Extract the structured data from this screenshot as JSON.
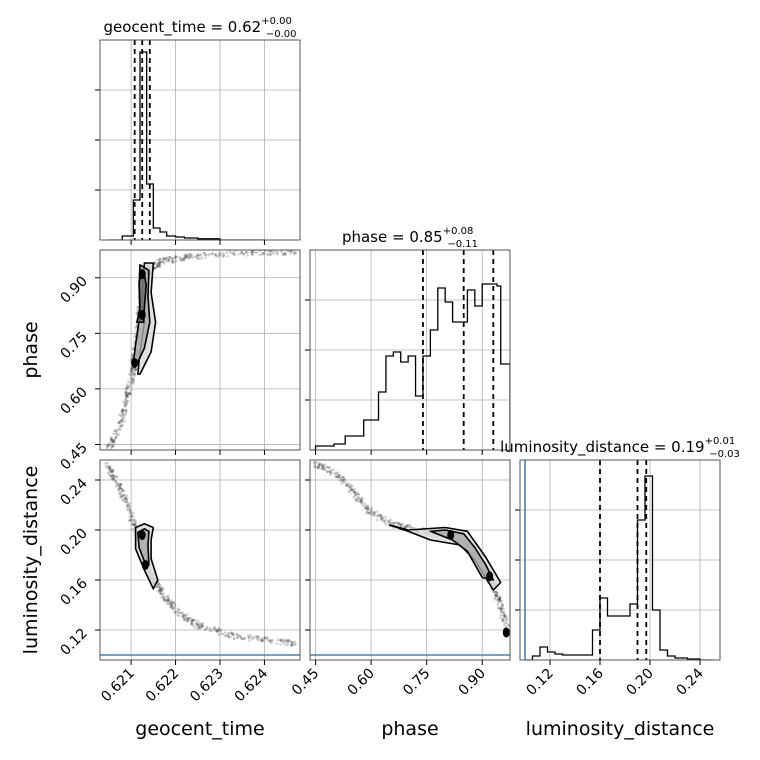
{
  "chart_data": {
    "type": "corner",
    "parameters": [
      "geocent_time",
      "phase",
      "luminosity_distance"
    ],
    "truth": {
      "luminosity_distance": 0.1,
      "color": "#4682b4"
    },
    "titles": [
      {
        "param": "geocent_time",
        "label": "geocent_time = 0.62",
        "plus": "+0.00",
        "minus": "−0.00"
      },
      {
        "param": "phase",
        "label": "phase = 0.85",
        "plus": "+0.08",
        "minus": "−0.11"
      },
      {
        "param": "luminosity_distance",
        "label": "luminosity_distance = 0.19",
        "plus": "+0.01",
        "minus": "−0.03"
      }
    ],
    "axes": {
      "geocent_time": {
        "range": [
          0.6203,
          0.6248
        ],
        "ticks": [
          "0.621",
          "0.622",
          "0.623",
          "0.624"
        ],
        "tick_values": [
          0.621,
          0.622,
          0.623,
          0.624
        ]
      },
      "phase": {
        "range": [
          0.435,
          0.975
        ],
        "ticks": [
          "0.45",
          "0.60",
          "0.75",
          "0.90"
        ],
        "tick_values": [
          0.45,
          0.6,
          0.75,
          0.9
        ]
      },
      "luminosity_distance": {
        "range": [
          0.096,
          0.256
        ],
        "ticks": [
          "0.12",
          "0.16",
          "0.20",
          "0.24"
        ],
        "tick_values": [
          0.12,
          0.16,
          0.2,
          0.24
        ]
      }
    },
    "histograms": [
      {
        "param": "geocent_time",
        "edges": [
          0.6205,
          0.6208,
          0.62105,
          0.6212,
          0.62135,
          0.6215,
          0.62165,
          0.6218,
          0.622,
          0.6222,
          0.6225,
          0.623,
          0.624
        ],
        "counts": [
          0.0,
          0.02,
          0.2,
          0.94,
          0.28,
          0.06,
          0.04,
          0.02,
          0.015,
          0.01,
          0.006,
          0.0
        ],
        "quantiles": [
          0.62108,
          0.62125,
          0.62142
        ]
      },
      {
        "param": "phase",
        "edges": [
          0.435,
          0.45,
          0.5,
          0.53,
          0.58,
          0.62,
          0.64,
          0.66,
          0.68,
          0.7,
          0.72,
          0.74,
          0.76,
          0.78,
          0.8,
          0.82,
          0.84,
          0.86,
          0.88,
          0.9,
          0.92,
          0.94,
          0.95,
          0.975
        ],
        "counts": [
          0.0,
          0.02,
          0.03,
          0.07,
          0.15,
          0.29,
          0.47,
          0.49,
          0.44,
          0.47,
          0.27,
          0.47,
          0.6,
          0.81,
          0.74,
          0.64,
          0.64,
          0.8,
          0.72,
          0.83,
          0.83,
          0.82,
          0.43
        ],
        "quantiles": [
          0.74,
          0.85,
          0.93
        ]
      },
      {
        "param": "luminosity_distance",
        "edges": [
          0.1,
          0.106,
          0.112,
          0.118,
          0.124,
          0.13,
          0.136,
          0.142,
          0.148,
          0.154,
          0.16,
          0.166,
          0.172,
          0.178,
          0.184,
          0.19,
          0.196,
          0.202,
          0.208,
          0.214,
          0.22,
          0.23,
          0.24,
          0.25
        ],
        "counts": [
          0.0,
          0.02,
          0.065,
          0.04,
          0.03,
          0.025,
          0.025,
          0.025,
          0.025,
          0.15,
          0.31,
          0.22,
          0.22,
          0.22,
          0.28,
          0.7,
          0.92,
          0.25,
          0.05,
          0.02,
          0.01,
          0.005,
          0.0
        ],
        "quantiles": [
          0.16,
          0.19,
          0.197
        ]
      }
    ],
    "scatter_2d": [
      {
        "x": "geocent_time",
        "y": "phase",
        "ridge": [
          [
            0.6205,
            0.44
          ],
          [
            0.62075,
            0.5
          ],
          [
            0.6209,
            0.57
          ],
          [
            0.62102,
            0.63
          ],
          [
            0.62108,
            0.68
          ],
          [
            0.62115,
            0.76
          ],
          [
            0.62125,
            0.86
          ],
          [
            0.6214,
            0.92
          ],
          [
            0.6217,
            0.945
          ],
          [
            0.6222,
            0.955
          ],
          [
            0.623,
            0.965
          ],
          [
            0.624,
            0.97
          ],
          [
            0.6247,
            0.97
          ]
        ],
        "contours": [
          [
            [
              0.62115,
              0.64
            ],
            [
              0.6212,
              0.7
            ],
            [
              0.6213,
              0.78
            ],
            [
              0.62125,
              0.86
            ],
            [
              0.6213,
              0.94
            ],
            [
              0.6215,
              0.94
            ],
            [
              0.62145,
              0.86
            ],
            [
              0.62155,
              0.78
            ],
            [
              0.62145,
              0.7
            ],
            [
              0.6212,
              0.64
            ]
          ],
          [
            [
              0.62105,
              0.67
            ],
            [
              0.6211,
              0.72
            ],
            [
              0.6212,
              0.8
            ],
            [
              0.62118,
              0.88
            ],
            [
              0.6212,
              0.935
            ],
            [
              0.6214,
              0.92
            ],
            [
              0.62138,
              0.85
            ],
            [
              0.62142,
              0.78
            ],
            [
              0.6213,
              0.71
            ],
            [
              0.6211,
              0.66
            ]
          ],
          [
            [
              0.62113,
              0.78
            ],
            [
              0.6212,
              0.82
            ],
            [
              0.62118,
              0.89
            ],
            [
              0.62128,
              0.92
            ],
            [
              0.62134,
              0.88
            ],
            [
              0.6213,
              0.82
            ],
            [
              0.62128,
              0.78
            ]
          ]
        ],
        "peaks": [
          [
            0.62125,
            0.8
          ],
          [
            0.62125,
            0.91
          ],
          [
            0.62108,
            0.67
          ]
        ]
      },
      {
        "x": "geocent_time",
        "y": "luminosity_distance",
        "ridge": [
          [
            0.62045,
            0.252
          ],
          [
            0.6207,
            0.238
          ],
          [
            0.6209,
            0.222
          ],
          [
            0.6211,
            0.2
          ],
          [
            0.6213,
            0.178
          ],
          [
            0.6215,
            0.16
          ],
          [
            0.6218,
            0.145
          ],
          [
            0.6221,
            0.133
          ],
          [
            0.6225,
            0.124
          ],
          [
            0.6232,
            0.116
          ],
          [
            0.624,
            0.112
          ],
          [
            0.6247,
            0.109
          ]
        ],
        "contours": [
          [
            [
              0.6211,
              0.202
            ],
            [
              0.6211,
              0.185
            ],
            [
              0.6213,
              0.168
            ],
            [
              0.6215,
              0.153
            ],
            [
              0.6216,
              0.16
            ],
            [
              0.62145,
              0.177
            ],
            [
              0.62145,
              0.192
            ],
            [
              0.6215,
              0.202
            ],
            [
              0.6213,
              0.205
            ]
          ],
          [
            [
              0.62115,
              0.198
            ],
            [
              0.62118,
              0.186
            ],
            [
              0.62133,
              0.172
            ],
            [
              0.6214,
              0.172
            ],
            [
              0.62138,
              0.188
            ],
            [
              0.6214,
              0.199
            ],
            [
              0.6213,
              0.201
            ]
          ]
        ],
        "peaks": [
          [
            0.62125,
            0.196
          ],
          [
            0.62132,
            0.172
          ]
        ]
      },
      {
        "x": "phase",
        "y": "luminosity_distance",
        "ridge": [
          [
            0.445,
            0.253
          ],
          [
            0.5,
            0.246
          ],
          [
            0.55,
            0.232
          ],
          [
            0.59,
            0.216
          ],
          [
            0.65,
            0.205
          ],
          [
            0.72,
            0.2
          ],
          [
            0.8,
            0.196
          ],
          [
            0.86,
            0.188
          ],
          [
            0.9,
            0.172
          ],
          [
            0.93,
            0.155
          ],
          [
            0.95,
            0.14
          ],
          [
            0.97,
            0.118
          ]
        ],
        "contours": [
          [
            [
              0.65,
              0.204
            ],
            [
              0.7,
              0.2
            ],
            [
              0.8,
              0.202
            ],
            [
              0.86,
              0.199
            ],
            [
              0.91,
              0.178
            ],
            [
              0.95,
              0.158
            ],
            [
              0.93,
              0.152
            ],
            [
              0.88,
              0.176
            ],
            [
              0.84,
              0.188
            ],
            [
              0.76,
              0.192
            ],
            [
              0.7,
              0.199
            ]
          ],
          [
            [
              0.76,
              0.199
            ],
            [
              0.8,
              0.2
            ],
            [
              0.85,
              0.197
            ],
            [
              0.88,
              0.186
            ],
            [
              0.91,
              0.172
            ],
            [
              0.93,
              0.16
            ],
            [
              0.9,
              0.162
            ],
            [
              0.86,
              0.183
            ],
            [
              0.82,
              0.192
            ]
          ]
        ],
        "peaks": [
          [
            0.815,
            0.196
          ],
          [
            0.92,
            0.163
          ],
          [
            0.965,
            0.118
          ]
        ]
      }
    ]
  }
}
